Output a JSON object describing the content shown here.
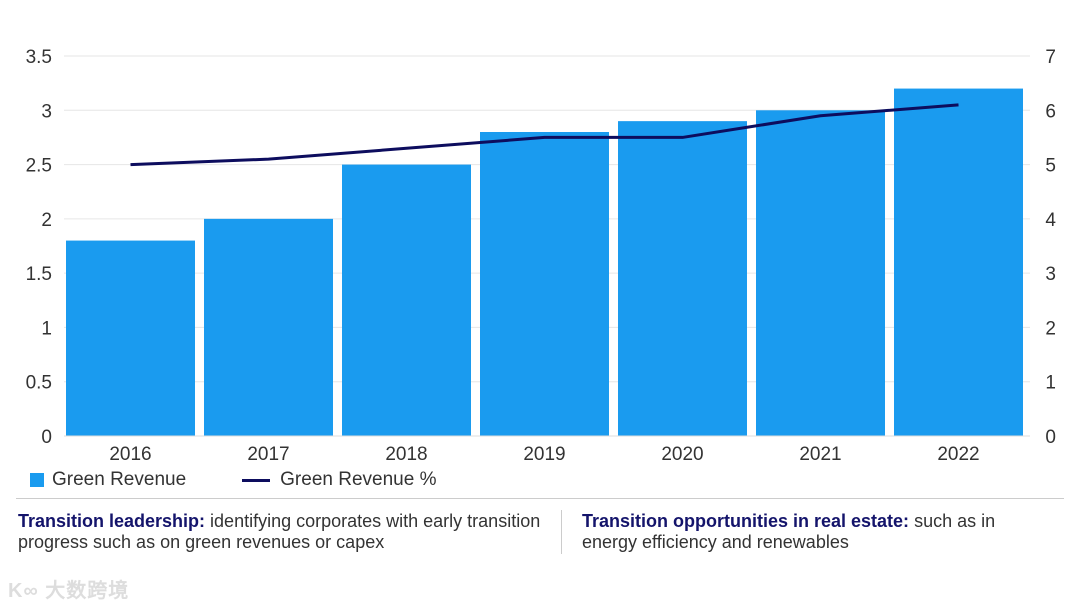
{
  "chart_data": {
    "type": "bar",
    "categories": [
      "2016",
      "2017",
      "2018",
      "2019",
      "2020",
      "2021",
      "2022"
    ],
    "series": [
      {
        "name": "Green Revenue",
        "type": "bar",
        "axis": "left",
        "color": "#1a9bef",
        "values": [
          1.8,
          2.0,
          2.5,
          2.8,
          2.9,
          3.0,
          3.2
        ]
      },
      {
        "name": "Green Revenue %",
        "type": "line",
        "axis": "right",
        "color": "#0d0d5e",
        "values": [
          5.0,
          5.1,
          5.3,
          5.5,
          5.5,
          5.9,
          6.1
        ]
      }
    ],
    "left_axis": {
      "ylim": [
        0,
        3.5
      ],
      "ticks": [
        "0",
        "0.5",
        "1",
        "1.5",
        "2",
        "2.5",
        "3",
        "3.5"
      ]
    },
    "right_axis": {
      "ylim": [
        0,
        7
      ],
      "ticks": [
        "0",
        "1",
        "2",
        "3",
        "4",
        "5",
        "6",
        "7"
      ]
    },
    "grid": true,
    "legend_placement": "bottom-left"
  },
  "legend": {
    "bar_label": "Green Revenue",
    "line_label": "Green Revenue %"
  },
  "notes": [
    {
      "bold": "Transition leadership:",
      "text": " identifying corporates with early transition progress such as on green revenues or capex"
    },
    {
      "bold": "Transition opportunities in real estate:",
      "text": " such as in energy efficiency and renewables"
    }
  ],
  "watermark": "大数跨境"
}
